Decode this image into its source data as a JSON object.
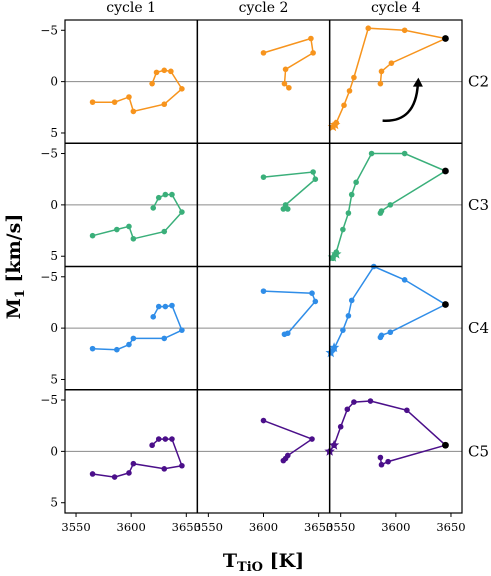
{
  "chart_data": {
    "type": "line",
    "x_range": [
      3540,
      3660
    ],
    "y_range": [
      -6,
      6
    ],
    "y_inverted": true,
    "x_ticks": [
      3550,
      3600,
      3650
    ],
    "y_ticks": [
      -5,
      0,
      5
    ],
    "y_tick_labels": [
      "−5",
      "0",
      "5"
    ],
    "xlabel_main": "T",
    "xlabel_sub": "TiO",
    "xlabel_unit": "[K]",
    "ylabel_main": "M",
    "ylabel_sub": "1",
    "ylabel_unit": "[km/s]",
    "col_titles": [
      "cycle 1",
      "cycle 2",
      "cycle 4"
    ],
    "rows": [
      {
        "label": "C2",
        "color": "#f7941d",
        "panels": [
          {
            "points": [
              [
                3565,
                2.0
              ],
              [
                3585,
                2.0
              ],
              [
                3598,
                1.5
              ],
              [
                3602,
                2.9
              ],
              [
                3630,
                2.2
              ],
              [
                3646,
                0.7
              ],
              [
                3636,
                -1.0
              ],
              [
                3630,
                -1.1
              ],
              [
                3623,
                -0.9
              ],
              [
                3619,
                0.2
              ]
            ]
          },
          {
            "points": [
              [
                3600,
                -2.8
              ],
              [
                3643,
                -4.2
              ],
              [
                3645,
                -2.8
              ],
              [
                3620,
                -1.2
              ],
              [
                3619,
                0.2
              ],
              [
                3623,
                0.6
              ]
            ]
          },
          {
            "points": [
              [
                3543,
                4.4
              ],
              [
                3546,
                4.0
              ],
              [
                3553,
                2.3
              ],
              [
                3558,
                0.9
              ],
              [
                3562,
                -0.4
              ],
              [
                3575,
                -5.2
              ],
              [
                3608,
                -5.0
              ],
              [
                3645,
                -4.2
              ],
              [
                3596,
                -1.8
              ],
              [
                3587,
                -1.0
              ],
              [
                3586,
                0.2
              ]
            ],
            "end_dot": [
              3645,
              -4.2
            ],
            "stars": [
              [
                3543,
                4.4
              ],
              [
                3545,
                4.2
              ]
            ],
            "arrow": true
          }
        ]
      },
      {
        "label": "C3",
        "color": "#3aaf7a",
        "panels": [
          {
            "points": [
              [
                3565,
                3.0
              ],
              [
                3587,
                2.4
              ],
              [
                3598,
                2.1
              ],
              [
                3602,
                3.3
              ],
              [
                3630,
                2.6
              ],
              [
                3646,
                0.7
              ],
              [
                3637,
                -1.0
              ],
              [
                3631,
                -1.0
              ],
              [
                3625,
                -0.7
              ],
              [
                3620,
                0.3
              ]
            ]
          },
          {
            "points": [
              [
                3600,
                -2.7
              ],
              [
                3645,
                -3.2
              ],
              [
                3647,
                -2.5
              ],
              [
                3620,
                0.0
              ],
              [
                3618,
                0.4
              ],
              [
                3622,
                0.4
              ]
            ]
          },
          {
            "points": [
              [
                3543,
                5.2
              ],
              [
                3546,
                4.6
              ],
              [
                3552,
                2.4
              ],
              [
                3557,
                0.8
              ],
              [
                3560,
                -1.0
              ],
              [
                3564,
                -2.2
              ],
              [
                3578,
                -5.0
              ],
              [
                3608,
                -5.0
              ],
              [
                3645,
                -3.3
              ],
              [
                3595,
                0.0
              ],
              [
                3587,
                0.6
              ],
              [
                3586,
                0.8
              ]
            ],
            "end_dot": [
              3645,
              -3.3
            ],
            "stars": [
              [
                3543,
                5.1
              ],
              [
                3546,
                4.8
              ]
            ]
          }
        ]
      },
      {
        "label": "C4",
        "color": "#2f8de8",
        "panels": [
          {
            "points": [
              [
                3565,
                2.0
              ],
              [
                3587,
                2.1
              ],
              [
                3598,
                1.6
              ],
              [
                3602,
                1.0
              ],
              [
                3630,
                1.0
              ],
              [
                3646,
                0.2
              ],
              [
                3637,
                -2.2
              ],
              [
                3631,
                -2.1
              ],
              [
                3625,
                -2.1
              ],
              [
                3620,
                -1.1
              ]
            ]
          },
          {
            "points": [
              [
                3600,
                -3.6
              ],
              [
                3644,
                -3.4
              ],
              [
                3647,
                -2.6
              ],
              [
                3622,
                0.5
              ],
              [
                3619,
                0.6
              ]
            ]
          },
          {
            "points": [
              [
                3541,
                2.4
              ],
              [
                3544,
                2.0
              ],
              [
                3552,
                0.2
              ],
              [
                3557,
                -1.2
              ],
              [
                3560,
                -2.7
              ],
              [
                3580,
                -6.0
              ],
              [
                3608,
                -4.7
              ],
              [
                3645,
                -2.3
              ],
              [
                3595,
                0.4
              ],
              [
                3587,
                0.7
              ],
              [
                3586,
                0.9
              ]
            ],
            "end_dot": [
              3645,
              -2.3
            ],
            "stars": [
              [
                3541,
                2.4
              ],
              [
                3544,
                1.9
              ]
            ]
          }
        ]
      },
      {
        "label": "C5",
        "color": "#4b0f8a",
        "panels": [
          {
            "points": [
              [
                3565,
                2.2
              ],
              [
                3585,
                2.5
              ],
              [
                3598,
                2.1
              ],
              [
                3602,
                1.2
              ],
              [
                3630,
                1.7
              ],
              [
                3646,
                1.4
              ],
              [
                3637,
                -1.2
              ],
              [
                3631,
                -1.2
              ],
              [
                3625,
                -1.2
              ],
              [
                3619,
                -0.6
              ]
            ]
          },
          {
            "points": [
              [
                3600,
                -3.0
              ],
              [
                3644,
                -1.2
              ],
              [
                3622,
                0.4
              ],
              [
                3620,
                0.7
              ],
              [
                3618,
                0.9
              ]
            ]
          },
          {
            "points": [
              [
                3540,
                0.0
              ],
              [
                3544,
                -0.6
              ],
              [
                3550,
                -2.4
              ],
              [
                3556,
                -4.1
              ],
              [
                3562,
                -4.8
              ],
              [
                3577,
                -4.9
              ],
              [
                3610,
                -4.0
              ],
              [
                3645,
                -0.6
              ],
              [
                3593,
                1.0
              ],
              [
                3587,
                1.3
              ],
              [
                3586,
                0.6
              ]
            ],
            "end_dot": [
              3645,
              -0.6
            ],
            "stars": [
              [
                3540,
                0.0
              ],
              [
                3544,
                -0.6
              ]
            ]
          }
        ]
      }
    ]
  }
}
